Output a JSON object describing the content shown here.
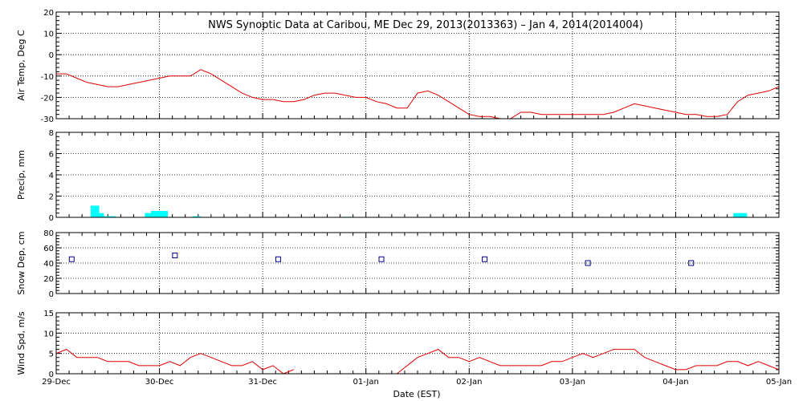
{
  "title": "NWS Synoptic Data at Caribou, ME   Dec 29, 2013(2013363) – Jan  4, 2014(2014004)",
  "xlabel": "Date (EST)",
  "chart_data": [
    {
      "type": "line",
      "ylabel": "Air Temp, Deg C",
      "ylim": [
        -30,
        20
      ],
      "yticks": [
        -30,
        -20,
        -10,
        0,
        10,
        20
      ],
      "xlim": [
        0,
        7
      ],
      "color": "#e00000",
      "x": [
        0,
        0.1,
        0.2,
        0.3,
        0.4,
        0.5,
        0.6,
        0.7,
        0.8,
        0.9,
        1.0,
        1.1,
        1.2,
        1.3,
        1.4,
        1.5,
        1.6,
        1.7,
        1.8,
        1.9,
        2.0,
        2.1,
        2.2,
        2.3,
        2.4,
        2.5,
        2.6,
        2.7,
        2.8,
        2.9,
        3.0,
        3.1,
        3.2,
        3.3,
        3.4,
        3.5,
        3.6,
        3.7,
        3.8,
        3.9,
        4.0,
        4.1,
        4.2,
        4.3,
        4.4,
        4.5,
        4.6,
        4.7,
        4.8,
        4.9,
        5.0,
        5.1,
        5.2,
        5.3,
        5.4,
        5.5,
        5.6,
        5.7,
        5.8,
        5.9,
        6.0,
        6.1,
        6.2,
        6.3,
        6.4,
        6.5,
        6.6,
        6.7,
        6.8,
        6.9,
        7.0
      ],
      "y": [
        -9,
        -9,
        -11,
        -13,
        -14,
        -15,
        -15,
        -14,
        -13,
        -12,
        -11,
        -10,
        -10,
        -10,
        -7,
        -9,
        -12,
        -15,
        -18,
        -20,
        -21,
        -21,
        -22,
        -22,
        -21,
        -19,
        -18,
        -18,
        -19,
        -20,
        -20,
        -22,
        -23,
        -25,
        -25,
        -18,
        -17,
        -19,
        -22,
        -25,
        -28,
        -29,
        -29,
        -30,
        -30,
        -27,
        -27,
        -28,
        -28,
        -28,
        -28,
        -28,
        -28,
        -28,
        -27,
        -25,
        -23,
        -24,
        -25,
        -26,
        -27,
        -28,
        -28,
        -29,
        -29,
        -28,
        -22,
        -19,
        -18,
        -17,
        -15
      ]
    },
    {
      "type": "bar",
      "ylabel": "Precip, mm",
      "ylim": [
        0,
        8
      ],
      "yticks": [
        0,
        2,
        4,
        6,
        8
      ],
      "xlim": [
        0,
        7
      ],
      "color": "#00ffff",
      "x": [
        0.375,
        0.42,
        0.5,
        0.54,
        0.9,
        0.96,
        1.04,
        1.36,
        2.82,
        6.6,
        6.65
      ],
      "values": [
        1.1,
        0.4,
        0.1,
        0.1,
        0.4,
        0.6,
        0.6,
        0.1,
        0.05,
        0.4,
        0.4
      ]
    },
    {
      "type": "scatter",
      "ylabel": "Snow Dep, cm",
      "ylim": [
        0,
        80
      ],
      "yticks": [
        0,
        20,
        40,
        60,
        80
      ],
      "xlim": [
        0,
        7
      ],
      "color": "#00008b",
      "x": [
        0.15,
        1.15,
        2.15,
        3.15,
        4.15,
        5.15,
        6.15
      ],
      "y": [
        45,
        50,
        45,
        45,
        45,
        40,
        40
      ]
    },
    {
      "type": "line",
      "ylabel": "Wind Spd, m/s",
      "ylim": [
        0,
        15
      ],
      "yticks": [
        0,
        5,
        10,
        15
      ],
      "xlim": [
        0,
        7
      ],
      "color": "#e00000",
      "x": [
        0,
        0.1,
        0.2,
        0.3,
        0.4,
        0.5,
        0.6,
        0.7,
        0.8,
        0.9,
        1.0,
        1.1,
        1.2,
        1.3,
        1.4,
        1.5,
        1.6,
        1.7,
        1.8,
        1.9,
        2.0,
        2.1,
        2.2,
        2.3,
        2.4,
        2.5,
        2.6,
        2.7,
        2.8,
        2.9,
        3.0,
        3.1,
        3.2,
        3.3,
        3.4,
        3.5,
        3.6,
        3.7,
        3.8,
        3.9,
        4.0,
        4.1,
        4.2,
        4.3,
        4.4,
        4.5,
        4.6,
        4.7,
        4.8,
        4.9,
        5.0,
        5.1,
        5.2,
        5.3,
        5.4,
        5.5,
        5.6,
        5.7,
        5.8,
        5.9,
        6.0,
        6.1,
        6.2,
        6.3,
        6.4,
        6.5,
        6.6,
        6.7,
        6.8,
        6.9,
        7.0
      ],
      "y": [
        5,
        6,
        4,
        4,
        4,
        3,
        3,
        3,
        2,
        2,
        2,
        3,
        2,
        4,
        5,
        4,
        3,
        2,
        2,
        3,
        1,
        2,
        0,
        1,
        0,
        0,
        0,
        0,
        0,
        0,
        0,
        1,
        0,
        0,
        2,
        4,
        5,
        6,
        4,
        4,
        3,
        4,
        3,
        2,
        2,
        2,
        2,
        2,
        3,
        3,
        4,
        5,
        4,
        5,
        6,
        6,
        6,
        4,
        3,
        2,
        1,
        1,
        2,
        2,
        2,
        3,
        3,
        2,
        3,
        2,
        1
      ],
      "gaps": [
        [
          2.35,
          3.25
        ]
      ]
    }
  ],
  "x_ticks": [
    {
      "value": 0,
      "label": "29-Dec"
    },
    {
      "value": 1,
      "label": "30-Dec"
    },
    {
      "value": 2,
      "label": "31-Dec"
    },
    {
      "value": 3,
      "label": "01-Jan"
    },
    {
      "value": 4,
      "label": "02-Jan"
    },
    {
      "value": 5,
      "label": "03-Jan"
    },
    {
      "value": 6,
      "label": "04-Jan"
    },
    {
      "value": 7,
      "label": "05-Jan"
    }
  ],
  "grid": true,
  "gridStyle": "dotted"
}
